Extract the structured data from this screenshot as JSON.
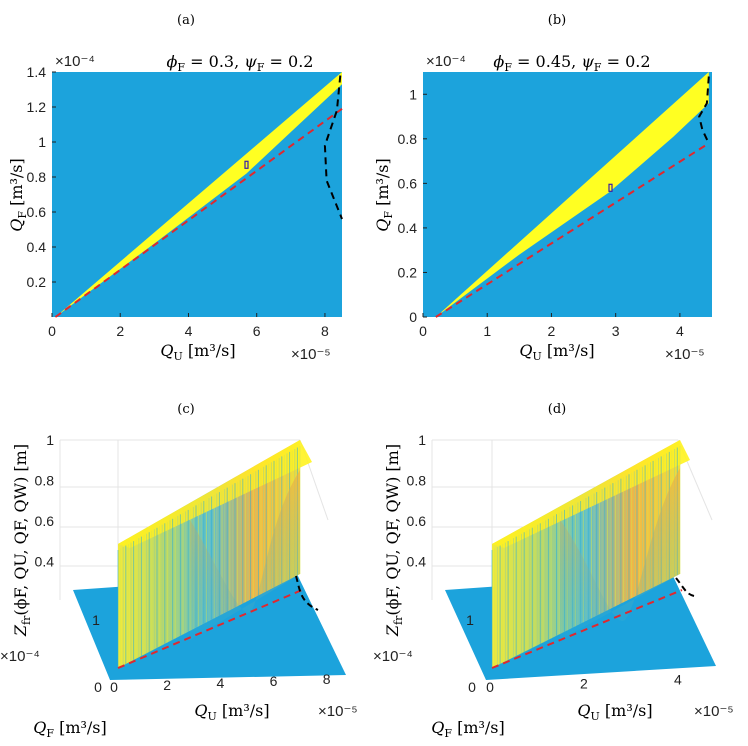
{
  "colors": {
    "background": "#1ca3dc",
    "region": "#ffff22",
    "red_dashed": "#e0282e",
    "black_dashed": "#000000",
    "marker": "#3b1fa8",
    "orange": "#f5a53a",
    "cyan": "#2ab0d6"
  },
  "chart_data": [
    {
      "panel": "(a)",
      "type": "area",
      "title": "ϕF = 0.3, ψF = 0.2",
      "title_parts": {
        "phi_sym": "ϕ",
        "phi_sub": "F",
        "phi_val": " = 0.3, ",
        "psi_sym": "ψ",
        "psi_sub": "F",
        "psi_val": " = 0.2"
      },
      "xlabel_parts": {
        "sym": "Q",
        "sub": "U",
        "unit": " [m³/s]"
      },
      "ylabel_parts": {
        "sym": "Q",
        "sub": "F",
        "unit": " [m³/s]"
      },
      "x_exponent": "×10⁻⁵",
      "y_exponent": "×10⁻⁴",
      "xlim": [
        0,
        8.5
      ],
      "ylim": [
        0,
        1.4
      ],
      "xticks": [
        0,
        2,
        4,
        6,
        8
      ],
      "yticks": [
        0.2,
        0.4,
        0.6,
        0.8,
        1,
        1.2,
        1.4
      ],
      "xtick_labels": [
        "0",
        "2",
        "4",
        "6",
        "8"
      ],
      "ytick_labels": [
        "0.2",
        "0.4",
        "0.6",
        "0.8",
        "1",
        "1.2",
        "1.4"
      ],
      "region_upper": [
        [
          0.1,
          0.0
        ],
        [
          8.5,
          1.4
        ]
      ],
      "region_lower": [
        [
          0.1,
          0.0
        ],
        [
          3.0,
          0.42
        ],
        [
          5.7,
          0.82
        ],
        [
          8.5,
          1.33
        ]
      ],
      "red_dashed": [
        [
          0.1,
          0.0
        ],
        [
          8.5,
          1.19
        ]
      ],
      "black_dashed": [
        [
          8.45,
          1.38
        ],
        [
          8.35,
          1.18
        ],
        [
          8.0,
          0.98
        ],
        [
          8.05,
          0.78
        ],
        [
          8.5,
          0.56
        ]
      ],
      "marker": [
        5.7,
        0.87
      ]
    },
    {
      "panel": "(b)",
      "type": "area",
      "title": "ϕF = 0.45, ψF = 0.2",
      "title_parts": {
        "phi_sym": "ϕ",
        "phi_sub": "F",
        "phi_val": " = 0.45, ",
        "psi_sym": "ψ",
        "psi_sub": "F",
        "psi_val": " = 0.2"
      },
      "xlabel_parts": {
        "sym": "Q",
        "sub": "U",
        "unit": " [m³/s]"
      },
      "ylabel_parts": {
        "sym": "Q",
        "sub": "F",
        "unit": " [m³/s]"
      },
      "x_exponent": "×10⁻⁵",
      "y_exponent": "×10⁻⁴",
      "xlim": [
        0,
        4.5
      ],
      "ylim": [
        0,
        1.1
      ],
      "xticks": [
        0,
        1,
        2,
        3,
        4
      ],
      "yticks": [
        0,
        0.2,
        0.4,
        0.6,
        0.8,
        1
      ],
      "xtick_labels": [
        "0",
        "1",
        "2",
        "3",
        "4"
      ],
      "ytick_labels": [
        "0",
        "0.2",
        "0.4",
        "0.6",
        "0.8",
        "1"
      ],
      "region_upper": [
        [
          0.2,
          0.0
        ],
        [
          4.45,
          1.1
        ]
      ],
      "region_lower": [
        [
          0.2,
          0.0
        ],
        [
          1.5,
          0.28
        ],
        [
          2.9,
          0.56
        ],
        [
          3.9,
          0.81
        ],
        [
          4.45,
          0.96
        ]
      ],
      "red_dashed": [
        [
          0.2,
          0.0
        ],
        [
          4.45,
          0.78
        ]
      ],
      "black_dashed": [
        [
          4.45,
          1.08
        ],
        [
          4.42,
          0.96
        ],
        [
          4.3,
          0.9
        ],
        [
          4.35,
          0.84
        ],
        [
          4.45,
          0.78
        ]
      ],
      "marker": [
        2.92,
        0.58
      ]
    },
    {
      "panel": "(c)",
      "type": "surface3d",
      "zlabel_parts": {
        "sym": "Z",
        "sub": "fr",
        "args": "(ϕF, QU, QF, QW)",
        "unit": " [m]"
      },
      "xlabel_parts": {
        "sym": "Q",
        "sub": "U",
        "unit": " [m³/s]"
      },
      "ylabel_parts": {
        "sym": "Q",
        "sub": "F",
        "unit": " [m³/s]"
      },
      "x_exponent": "×10⁻⁵",
      "y_exponent": "×10⁻⁴",
      "xticks": [
        0,
        2,
        4,
        6,
        8
      ],
      "xtick_labels": [
        "0",
        "2",
        "4",
        "6",
        "8"
      ],
      "yticks": [
        0,
        1
      ],
      "ytick_labels": [
        "0",
        "1"
      ],
      "zticks": [
        0.4,
        0.6,
        0.8,
        1
      ],
      "ztick_labels": [
        "0.4",
        "0.6",
        "0.8",
        "1"
      ],
      "zlim": [
        0.3,
        1
      ]
    },
    {
      "panel": "(d)",
      "type": "surface3d",
      "zlabel_parts": {
        "sym": "Z",
        "sub": "fr",
        "args": "(ϕF, QU, QF, QW)",
        "unit": " [m]"
      },
      "xlabel_parts": {
        "sym": "Q",
        "sub": "U",
        "unit": " [m³/s]"
      },
      "ylabel_parts": {
        "sym": "Q",
        "sub": "F",
        "unit": " [m³/s]"
      },
      "x_exponent": "×10⁻⁵",
      "y_exponent": "×10⁻⁴",
      "xticks": [
        0,
        2,
        4
      ],
      "xtick_labels": [
        "0",
        "2",
        "4"
      ],
      "yticks": [
        0,
        1
      ],
      "ytick_labels": [
        "0",
        "1"
      ],
      "zticks": [
        0.4,
        0.6,
        0.8,
        1
      ],
      "ztick_labels": [
        "0.4",
        "0.6",
        "0.8",
        "1"
      ],
      "zlim": [
        0.3,
        1
      ]
    }
  ],
  "captions": {
    "a": "(a)",
    "b": "(b)",
    "c": "(c)",
    "d": "(d)"
  }
}
